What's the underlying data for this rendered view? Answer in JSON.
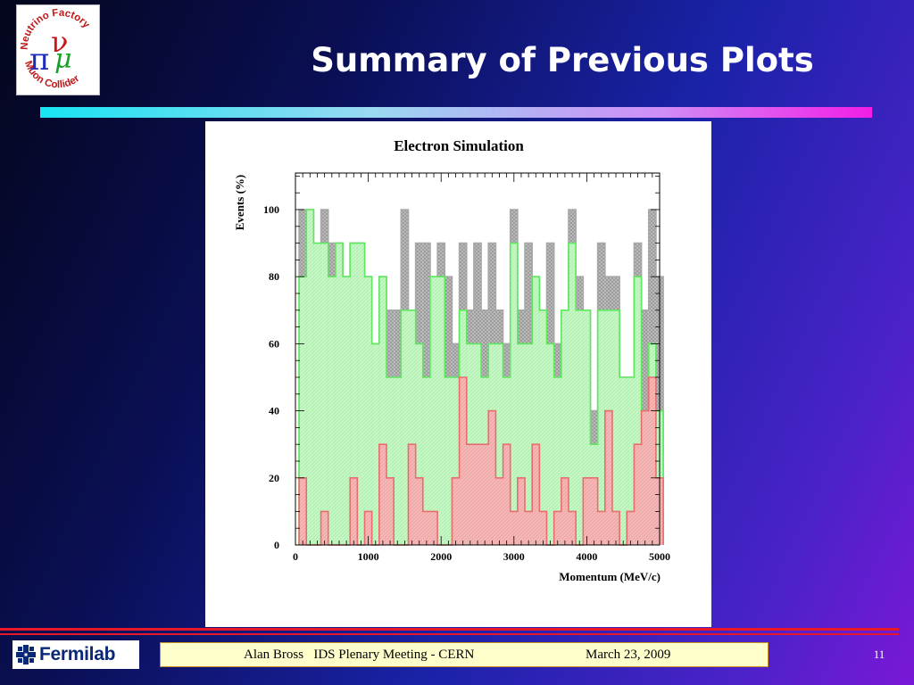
{
  "slide": {
    "title": "Summary of Previous Plots",
    "page_number": "11"
  },
  "logo": {
    "top_text": "Neutrino Factory",
    "bottom_text": "Muon Collider",
    "symbols": [
      "π",
      "μ",
      "ν"
    ]
  },
  "footer": {
    "text": "Alan Bross   IDS Plenary Meeting - CERN",
    "date": "March 23,  2009",
    "org_logo": "Fermilab"
  },
  "colors": {
    "gray_series": "#a8a8a8",
    "green_series": "#b8f5b8",
    "red_series": "#f2a8a8"
  },
  "chart_data": {
    "type": "bar",
    "title": "Electron Simulation",
    "xlabel": "Momentum (MeV/c)",
    "ylabel": "Events (%)",
    "xlim": [
      0,
      5000
    ],
    "ylim": [
      0,
      100
    ],
    "bin_width": 100,
    "x_tick_labels": [
      "0",
      "1000",
      "2000",
      "3000",
      "4000",
      "5000"
    ],
    "y_tick_labels": [
      "0",
      "20",
      "40",
      "60",
      "80",
      "100"
    ],
    "x_ticks": [
      0,
      1000,
      2000,
      3000,
      4000,
      5000
    ],
    "y_ticks": [
      0,
      20,
      40,
      60,
      80,
      100
    ],
    "grid": false,
    "series": [
      {
        "values": [
          100,
          100,
          80,
          100,
          90,
          90,
          80,
          90,
          90,
          80,
          60,
          80,
          70,
          70,
          100,
          70,
          90,
          90,
          80,
          90,
          80,
          60,
          90,
          70,
          90,
          70,
          90,
          70,
          60,
          100,
          70,
          90,
          80,
          60,
          90,
          60,
          70,
          100,
          80,
          70,
          40,
          90,
          80,
          80,
          50,
          50,
          90,
          70,
          100,
          80
        ]
      },
      {
        "values": [
          80,
          100,
          90,
          90,
          80,
          90,
          80,
          90,
          90,
          80,
          60,
          80,
          50,
          50,
          70,
          70,
          60,
          50,
          80,
          80,
          50,
          50,
          70,
          60,
          60,
          50,
          60,
          60,
          50,
          90,
          60,
          60,
          80,
          70,
          60,
          50,
          70,
          90,
          70,
          70,
          30,
          70,
          70,
          70,
          50,
          50,
          80,
          40,
          60,
          40
        ]
      },
      {
        "values": [
          20,
          0,
          0,
          10,
          0,
          0,
          0,
          20,
          0,
          10,
          0,
          30,
          20,
          0,
          0,
          30,
          20,
          10,
          10,
          0,
          0,
          20,
          50,
          30,
          30,
          30,
          40,
          20,
          30,
          10,
          20,
          10,
          30,
          10,
          0,
          10,
          20,
          10,
          0,
          20,
          20,
          10,
          40,
          10,
          0,
          10,
          30,
          40,
          50,
          20
        ]
      }
    ]
  }
}
